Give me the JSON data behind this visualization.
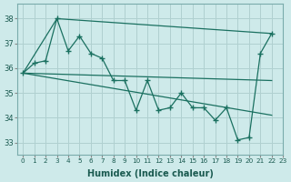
{
  "xlabel": "Humidex (Indice chaleur)",
  "background_color": "#ceeaea",
  "grid_color": "#b0d0d0",
  "line_color": "#1a7060",
  "xlim": [
    -0.5,
    23
  ],
  "ylim": [
    32.5,
    38.6
  ],
  "yticks": [
    33,
    34,
    35,
    36,
    37,
    38
  ],
  "xticks": [
    0,
    1,
    2,
    3,
    4,
    5,
    6,
    7,
    8,
    9,
    10,
    11,
    12,
    13,
    14,
    15,
    16,
    17,
    18,
    19,
    20,
    21,
    22,
    23
  ],
  "main_x": [
    0,
    1,
    2,
    3,
    4,
    5,
    6,
    7,
    8,
    9,
    10,
    11,
    12,
    13,
    14,
    15,
    16,
    17,
    18,
    19,
    20,
    21,
    22
  ],
  "main_y": [
    35.8,
    36.2,
    36.3,
    38.0,
    36.7,
    37.3,
    36.6,
    36.4,
    35.5,
    35.5,
    34.3,
    35.5,
    34.3,
    34.4,
    35.0,
    34.4,
    34.4,
    33.9,
    34.4,
    33.1,
    33.2,
    36.6,
    37.4
  ],
  "line1_x": [
    0,
    3,
    22
  ],
  "line1_y": [
    35.8,
    38.0,
    37.4
  ],
  "line2_x": [
    0,
    22
  ],
  "line2_y": [
    35.8,
    35.5
  ],
  "line3_x": [
    0,
    22
  ],
  "line3_y": [
    35.8,
    34.1
  ]
}
